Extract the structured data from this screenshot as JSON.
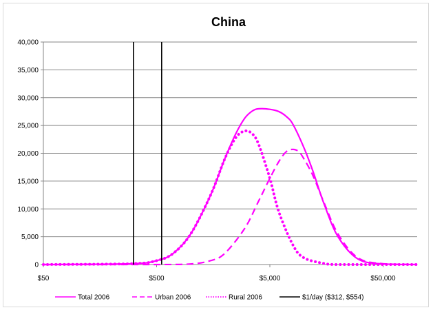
{
  "chart_data": {
    "type": "line",
    "title": "China",
    "xlabel": "",
    "ylabel": "",
    "x_scale": "log",
    "xlim": [
      50,
      100000
    ],
    "ylim": [
      0,
      40000
    ],
    "x_ticks": [
      50,
      500,
      5000,
      50000
    ],
    "x_tick_labels": [
      "$50",
      "$500",
      "$5,000",
      "$50,000"
    ],
    "y_ticks": [
      0,
      5000,
      10000,
      15000,
      20000,
      25000,
      30000,
      35000,
      40000
    ],
    "y_tick_labels": [
      "0",
      "5,000",
      "10,000",
      "15,000",
      "20,000",
      "25,000",
      "30,000",
      "35,000",
      "40,000"
    ],
    "grid": "horizontal",
    "legend_position": "bottom",
    "series": [
      {
        "name": "Total 2006",
        "color": "#ff00ff",
        "dash": "solid",
        "x": [
          50,
          300,
          500,
          700,
          1000,
          1500,
          2000,
          2500,
          3000,
          3500,
          4000,
          5000,
          6000,
          7000,
          8000,
          10000,
          12000,
          15000,
          20000,
          30000,
          50000,
          100000
        ],
        "y": [
          0,
          150,
          700,
          2000,
          5500,
          12500,
          19000,
          23500,
          26300,
          27600,
          28000,
          27900,
          27500,
          26600,
          25200,
          21000,
          16800,
          11000,
          5000,
          1000,
          100,
          0
        ]
      },
      {
        "name": "Urban 2006",
        "color": "#ff00ff",
        "dash": "dashed",
        "x": [
          50,
          500,
          1000,
          1500,
          2000,
          3000,
          4000,
          5000,
          6000,
          7000,
          8000,
          9000,
          10000,
          12000,
          15000,
          20000,
          30000,
          50000,
          100000
        ],
        "y": [
          0,
          0,
          100,
          700,
          2000,
          6500,
          11500,
          15500,
          18500,
          20300,
          20700,
          20300,
          19000,
          16000,
          11200,
          5500,
          1200,
          150,
          0
        ]
      },
      {
        "name": "Rural 2006",
        "color": "#ff00ff",
        "dash": "dotted",
        "x": [
          50,
          300,
          500,
          700,
          1000,
          1500,
          2000,
          2500,
          3000,
          3500,
          4000,
          5000,
          6000,
          8000,
          10000,
          15000,
          20000,
          50000,
          100000
        ],
        "y": [
          0,
          150,
          700,
          2000,
          5500,
          12500,
          19000,
          22800,
          24000,
          23500,
          21500,
          15500,
          9500,
          3500,
          1200,
          200,
          0,
          0,
          0
        ]
      },
      {
        "name": "$1/day ($312, $554)",
        "color": "#000000",
        "dash": "solid",
        "vlines": [
          312,
          554
        ]
      }
    ]
  }
}
